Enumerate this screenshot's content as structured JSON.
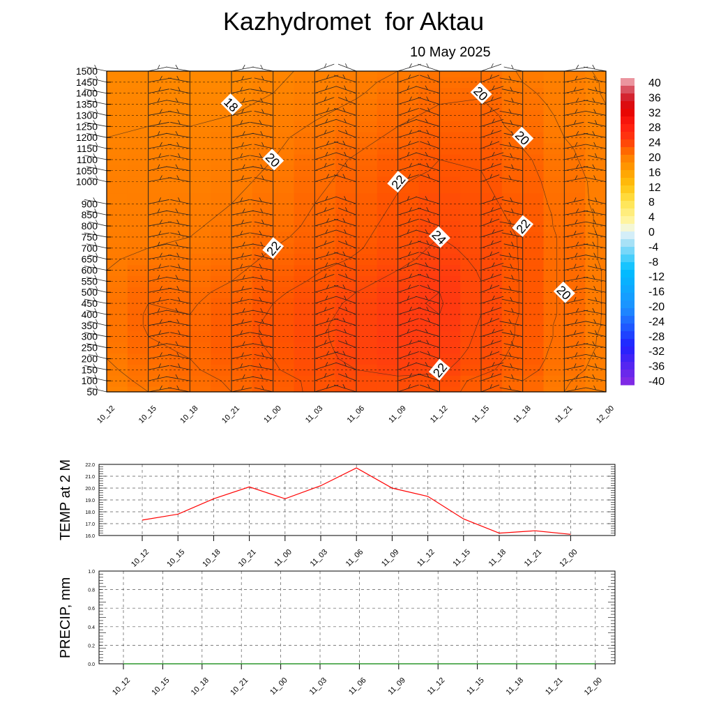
{
  "title": "Kazhydromet  for Aktau",
  "subtitle": "10 May 2025",
  "chart_data": [
    {
      "type": "heatmap",
      "x": [
        "10_12",
        "10_15",
        "10_18",
        "10_21",
        "11_00",
        "11_03",
        "11_06",
        "11_09",
        "11_12",
        "11_15",
        "11_18",
        "11_21",
        "12_00"
      ],
      "y": [
        50,
        100,
        150,
        200,
        250,
        300,
        350,
        400,
        450,
        500,
        550,
        600,
        650,
        700,
        750,
        800,
        850,
        900,
        1000,
        1050,
        1100,
        1150,
        1200,
        1250,
        1300,
        1350,
        1400,
        1450,
        1500
      ],
      "z": [
        [
          19.0,
          20.0,
          20.6,
          21.0,
          21.5,
          22.2,
          22.6,
          22.6,
          22.4,
          21.6,
          21.0,
          20.0,
          19.4
        ],
        [
          19.5,
          20.3,
          20.7,
          21.1,
          21.6,
          22.2,
          22.7,
          22.7,
          22.6,
          21.7,
          21.0,
          20.1,
          19.5
        ],
        [
          19.8,
          20.5,
          20.9,
          21.3,
          21.9,
          22.5,
          23.0,
          23.4,
          23.2,
          22.3,
          21.4,
          20.4,
          19.6
        ],
        [
          20.0,
          20.7,
          21.0,
          21.5,
          22.0,
          22.6,
          23.3,
          23.6,
          23.5,
          22.5,
          21.6,
          20.5,
          19.7
        ],
        [
          20.2,
          20.9,
          21.1,
          21.6,
          22.1,
          22.7,
          23.4,
          23.8,
          23.7,
          22.7,
          21.7,
          20.6,
          19.8
        ],
        [
          20.3,
          21.0,
          21.2,
          21.6,
          22.2,
          22.8,
          23.4,
          23.9,
          23.8,
          22.8,
          21.8,
          20.7,
          19.8
        ],
        [
          20.3,
          21.1,
          21.1,
          21.6,
          22.2,
          22.8,
          23.4,
          23.9,
          23.9,
          22.9,
          21.8,
          20.7,
          19.9
        ],
        [
          20.3,
          21.1,
          21.0,
          21.5,
          22.1,
          22.7,
          23.3,
          23.9,
          24.0,
          23.0,
          21.9,
          20.8,
          19.9
        ],
        [
          20.3,
          21.0,
          20.9,
          21.4,
          22.0,
          22.6,
          23.2,
          23.8,
          24.1,
          23.0,
          21.9,
          20.8,
          19.9
        ],
        [
          20.2,
          20.9,
          20.8,
          21.2,
          21.8,
          22.4,
          23.0,
          23.6,
          24.0,
          23.0,
          21.9,
          20.8,
          19.9
        ],
        [
          20.1,
          20.7,
          20.6,
          21.0,
          21.6,
          22.1,
          22.7,
          23.3,
          23.9,
          23.0,
          21.9,
          20.8,
          19.9
        ],
        [
          20.0,
          20.5,
          20.5,
          20.8,
          21.4,
          21.9,
          22.4,
          23.0,
          23.7,
          22.9,
          21.9,
          20.8,
          19.9
        ],
        [
          19.9,
          20.2,
          20.3,
          20.6,
          21.2,
          21.6,
          22.1,
          22.7,
          23.4,
          22.8,
          21.9,
          20.8,
          19.8
        ],
        [
          19.8,
          20.0,
          20.1,
          20.4,
          21.0,
          21.4,
          21.9,
          22.5,
          23.2,
          22.7,
          21.9,
          20.8,
          19.8
        ],
        [
          19.7,
          19.9,
          20.0,
          20.3,
          20.8,
          21.3,
          21.8,
          22.4,
          23.0,
          22.6,
          21.9,
          20.8,
          19.8
        ],
        [
          19.6,
          19.8,
          19.9,
          20.2,
          20.6,
          21.2,
          21.7,
          22.3,
          22.9,
          22.5,
          21.8,
          20.7,
          19.7
        ],
        [
          19.6,
          19.7,
          19.8,
          20.1,
          20.5,
          21.1,
          21.6,
          22.2,
          22.7,
          22.4,
          21.7,
          20.7,
          19.7
        ],
        [
          19.5,
          19.6,
          19.7,
          20.0,
          20.4,
          21.0,
          21.5,
          22.1,
          22.6,
          22.3,
          21.6,
          20.6,
          19.6
        ],
        [
          19.4,
          19.5,
          19.5,
          19.8,
          20.2,
          20.8,
          21.3,
          21.9,
          22.3,
          22.1,
          21.4,
          20.5,
          19.6
        ],
        [
          19.3,
          19.4,
          19.4,
          19.7,
          20.1,
          20.7,
          21.2,
          21.7,
          22.1,
          22.0,
          21.3,
          20.4,
          19.5
        ],
        [
          19.2,
          19.3,
          19.3,
          19.6,
          20.0,
          20.6,
          21.1,
          21.6,
          22.0,
          21.9,
          21.2,
          20.3,
          19.4
        ],
        [
          19.1,
          19.2,
          19.2,
          19.5,
          19.9,
          20.4,
          20.9,
          21.4,
          21.8,
          21.8,
          21.0,
          20.2,
          19.3
        ],
        [
          19.0,
          19.1,
          19.1,
          19.4,
          19.8,
          20.3,
          20.7,
          21.2,
          21.6,
          21.6,
          20.9,
          20.0,
          19.2
        ],
        [
          18.9,
          19.0,
          19.0,
          19.2,
          19.6,
          20.1,
          20.5,
          21.0,
          21.4,
          21.4,
          20.7,
          19.9,
          19.1
        ],
        [
          18.8,
          18.9,
          18.8,
          19.0,
          19.4,
          19.9,
          20.3,
          20.8,
          21.2,
          21.3,
          20.6,
          19.8,
          19.1
        ],
        [
          18.7,
          18.8,
          18.7,
          18.8,
          19.2,
          19.7,
          20.1,
          20.6,
          21.0,
          21.1,
          20.4,
          19.7,
          19.0
        ],
        [
          18.6,
          18.7,
          18.6,
          18.6,
          19.0,
          19.5,
          19.9,
          20.4,
          20.8,
          20.9,
          20.2,
          19.6,
          18.9
        ],
        [
          18.5,
          18.6,
          18.5,
          18.5,
          18.9,
          19.3,
          19.8,
          20.2,
          20.6,
          20.7,
          20.0,
          19.5,
          18.9
        ],
        [
          18.4,
          18.5,
          18.4,
          18.4,
          18.8,
          19.2,
          19.6,
          20.0,
          20.4,
          20.5,
          19.9,
          19.4,
          18.8
        ]
      ],
      "contour_labels": [
        {
          "value": "18",
          "x": "10_21",
          "y": 1350
        },
        {
          "value": "20",
          "x": "11_00",
          "y": 1100
        },
        {
          "value": "22",
          "x": "11_09",
          "y": 1000
        },
        {
          "value": "22",
          "x": "11_00",
          "y": 700
        },
        {
          "value": "24",
          "x": "11_12",
          "y": 750
        },
        {
          "value": "22",
          "x": "11_12",
          "y": 150
        },
        {
          "value": "20",
          "x": "11_15",
          "y": 1400
        },
        {
          "value": "20",
          "x": "11_18",
          "y": 1200
        },
        {
          "value": "22",
          "x": "11_18",
          "y": 800
        },
        {
          "value": "20",
          "x": "11_21",
          "y": 500
        }
      ],
      "colorbar": {
        "ticks": [
          "40",
          "36",
          "32",
          "28",
          "24",
          "20",
          "16",
          "12",
          "8",
          "4",
          "0",
          "-4",
          "-8",
          "-12",
          "-16",
          "-20",
          "-24",
          "-28",
          "-32",
          "-36",
          "-40"
        ],
        "range": [
          -40,
          40
        ]
      },
      "wind_barbs": true,
      "grid": true
    },
    {
      "type": "line",
      "ylabel": "TEMP at 2 M",
      "categories": [
        "10_12",
        "10_15",
        "10_18",
        "10_21",
        "11_00",
        "11_03",
        "11_06",
        "11_09",
        "11_12",
        "11_15",
        "11_18",
        "11_21",
        "12_00"
      ],
      "values": [
        17.3,
        17.8,
        19.1,
        20.1,
        19.1,
        20.2,
        21.7,
        20.0,
        19.3,
        17.4,
        16.2,
        16.4,
        16.1
      ],
      "ylim": [
        16.0,
        22.0
      ],
      "ytick_labels": [
        "22.0",
        "21.0",
        "20.0",
        "19.0",
        "18.0",
        "17.0",
        "16.0"
      ],
      "color": "#ff0000",
      "grid": true
    },
    {
      "type": "line",
      "ylabel": "PRECIP, mm",
      "categories": [
        "10_12",
        "10_15",
        "10_18",
        "10_21",
        "11_00",
        "11_03",
        "11_06",
        "11_09",
        "11_12",
        "11_15",
        "11_18",
        "11_21",
        "12_00"
      ],
      "values": [
        0,
        0,
        0,
        0,
        0,
        0,
        0,
        0,
        0,
        0,
        0,
        0,
        0
      ],
      "ylim": [
        0.0,
        1.0
      ],
      "ytick_labels": [
        "1.0",
        "0.8",
        "0.6",
        "0.4",
        "0.2",
        "0.0"
      ],
      "color": "#008000",
      "grid": true
    }
  ]
}
